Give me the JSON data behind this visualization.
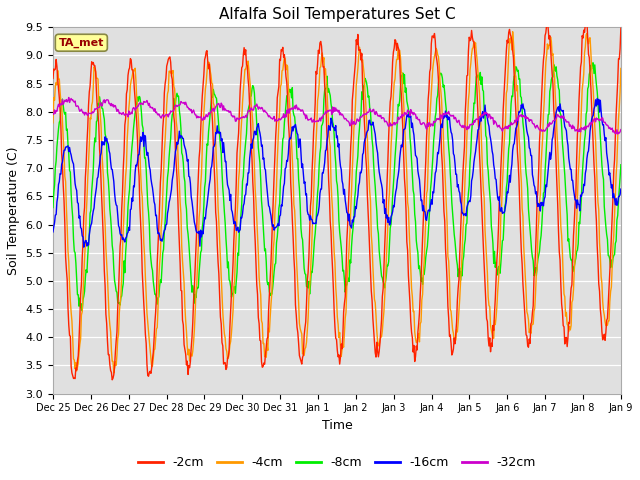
{
  "title": "Alfalfa Soil Temperatures Set C",
  "xlabel": "Time",
  "ylabel": "Soil Temperature (C)",
  "ylim": [
    3.0,
    9.5
  ],
  "yticks": [
    3.0,
    3.5,
    4.0,
    4.5,
    5.0,
    5.5,
    6.0,
    6.5,
    7.0,
    7.5,
    8.0,
    8.5,
    9.0,
    9.5
  ],
  "colors": {
    "-2cm": "#ff2200",
    "-4cm": "#ff9900",
    "-8cm": "#00ee00",
    "-16cm": "#0000ff",
    "-32cm": "#cc00cc"
  },
  "ta_met_label": "TA_met",
  "ta_met_color": "#990000",
  "ta_met_bg": "#ffff99",
  "background_color": "#e0e0e0",
  "n_days": 15,
  "points_per_day": 48,
  "tick_labels": [
    "Dec 25",
    "Dec 26",
    "Dec 27",
    "Dec 28",
    "Dec 29",
    "Dec 30",
    "Dec 31",
    "Jan 1",
    "Jan 2",
    "Jan 3",
    "Jan 4",
    "Jan 5",
    "Jan 6",
    "Jan 7",
    "Jan 8",
    "Jan 9"
  ]
}
